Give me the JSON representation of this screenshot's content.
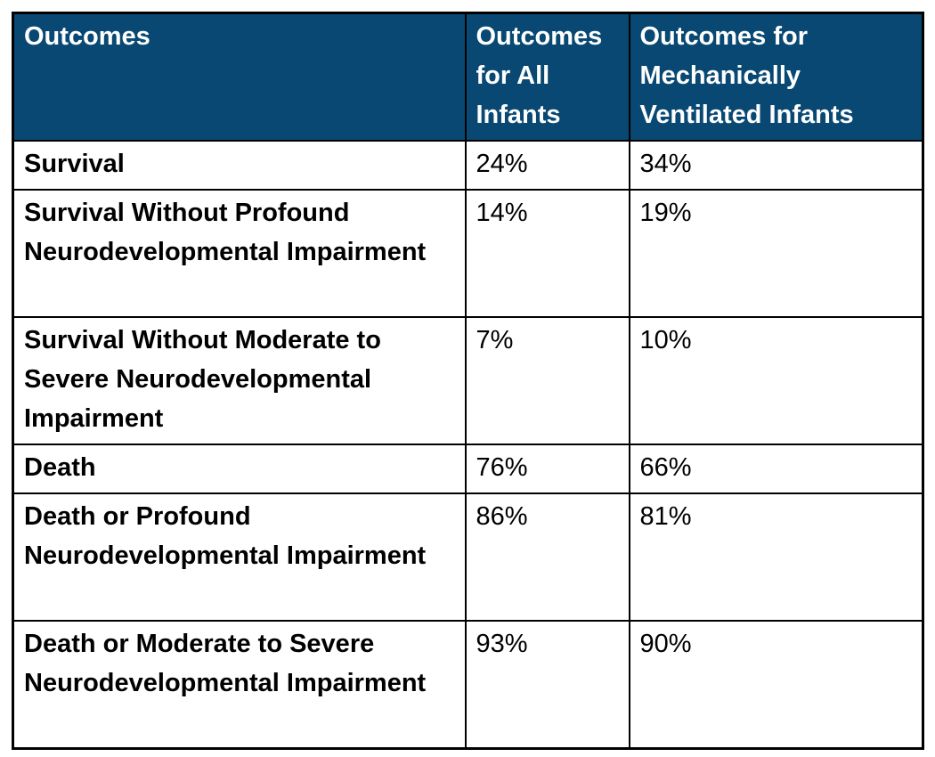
{
  "table": {
    "columns": [
      "Outcomes",
      "Outcomes for All Infants",
      "Outcomes for Mechanically Ventilated Infants"
    ],
    "rows": [
      {
        "label": "Survival",
        "values": [
          "24%",
          "34%"
        ]
      },
      {
        "label": "Survival Without Profound Neurodevelopmental Impairment",
        "values": [
          "14%",
          "19%"
        ]
      },
      {
        "label": "Survival Without Moderate to Severe Neurodevelopmental Impairment",
        "values": [
          "7%",
          "10%"
        ]
      },
      {
        "label": "Death",
        "values": [
          "76%",
          "66%"
        ]
      },
      {
        "label": "Death or Profound Neurodevelopmental Impairment",
        "values": [
          "86%",
          "81%"
        ]
      },
      {
        "label": "Death or Moderate to Severe Neurodevelopmental Impairment",
        "values": [
          "93%",
          "90%"
        ]
      }
    ],
    "colors": {
      "header_bg": "#084872",
      "header_text": "#ffffff",
      "border": "#000000",
      "body_text": "#000000",
      "page_bg": "#ffffff"
    }
  },
  "chart_data": {
    "type": "table",
    "title": "",
    "categories": [
      "Survival",
      "Survival Without Profound Neurodevelopmental Impairment",
      "Survival Without Moderate to Severe Neurodevelopmental Impairment",
      "Death",
      "Death or Profound Neurodevelopmental Impairment",
      "Death or Moderate to Severe Neurodevelopmental Impairment"
    ],
    "series": [
      {
        "name": "Outcomes for All Infants",
        "values": [
          24,
          14,
          7,
          76,
          86,
          93
        ]
      },
      {
        "name": "Outcomes for Mechanically Ventilated Infants",
        "values": [
          34,
          19,
          10,
          66,
          81,
          90
        ]
      }
    ],
    "unit": "%"
  }
}
